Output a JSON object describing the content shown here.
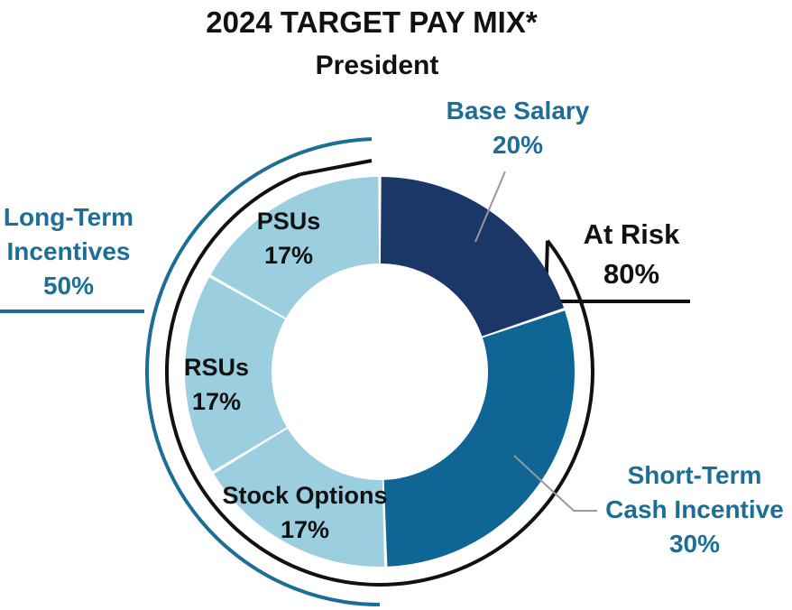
{
  "chart_data": {
    "type": "pie",
    "variant": "donut",
    "title": "2024 TARGET PAY MIX*",
    "subtitle": "President",
    "slices": [
      {
        "label": "Base Salary",
        "percent_label": "20%",
        "value": 20,
        "color": "#1a3768"
      },
      {
        "label": "Short-Term Cash Incentive",
        "percent_label": "30%",
        "value": 30,
        "color": "#0f6594"
      },
      {
        "label": "Stock Options",
        "percent_label": "17%",
        "value": 17,
        "color": "#9bcede"
      },
      {
        "label": "RSUs",
        "percent_label": "17%",
        "value": 17,
        "color": "#9bcede"
      },
      {
        "label": "PSUs",
        "percent_label": "17%",
        "value": 17,
        "color": "#9bcede"
      }
    ],
    "groups": [
      {
        "label": "At Risk",
        "percent_label": "80%",
        "color": "#111111"
      },
      {
        "label": "Long-Term Incentives",
        "percent_label": "50%",
        "color": "#1c6e96"
      }
    ],
    "colors": {
      "title": "#111111",
      "outside_label": "#1c6e96",
      "inner_label": "#111111",
      "leader": "#999999"
    }
  }
}
